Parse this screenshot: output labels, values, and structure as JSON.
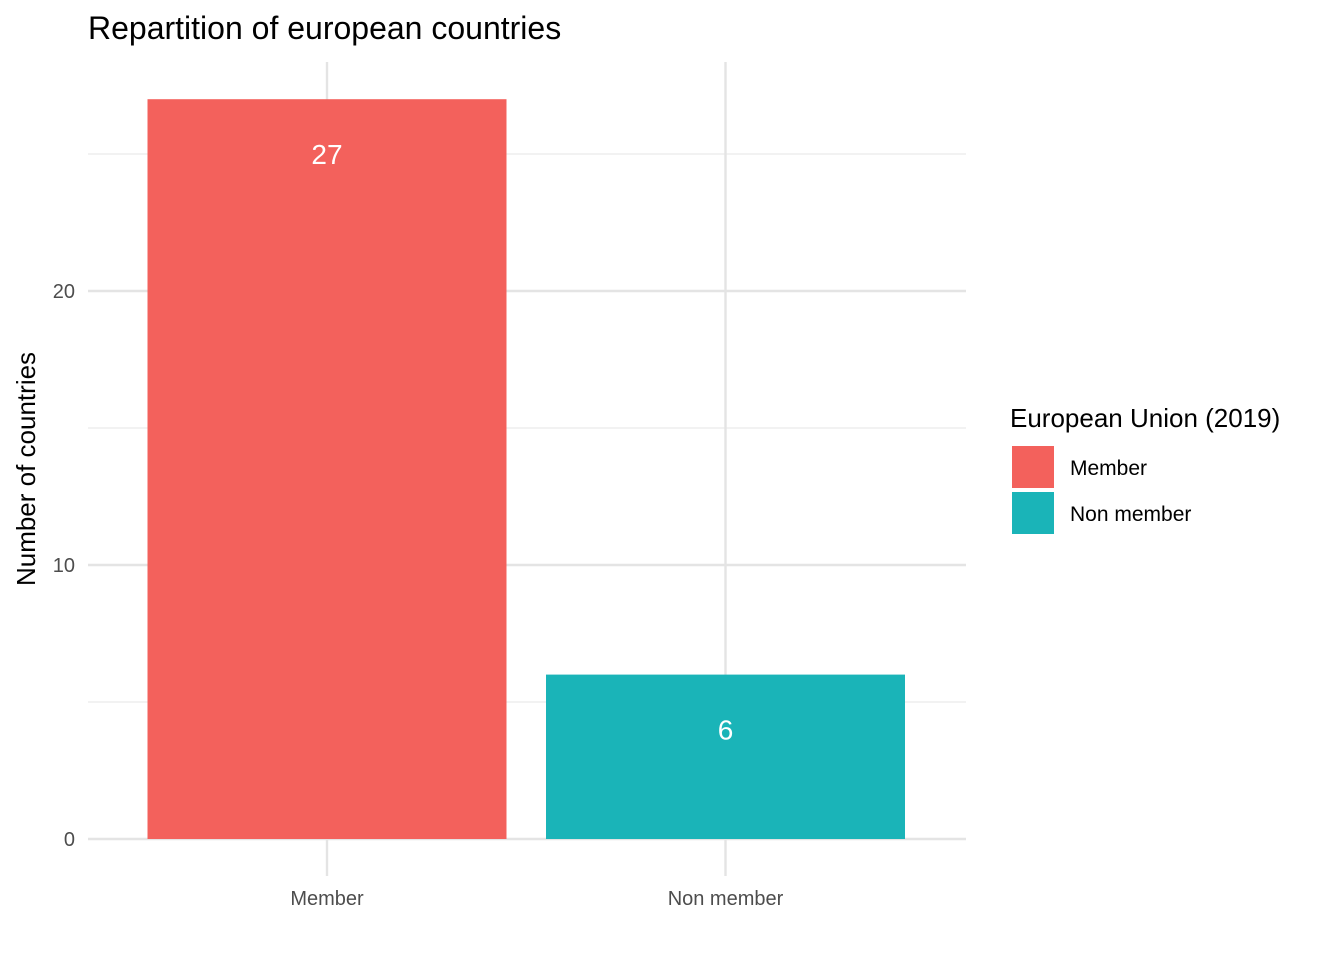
{
  "chart_data": {
    "type": "bar",
    "title": "Repartition of european countries",
    "xlabel": "",
    "ylabel": "Number of countries",
    "categories": [
      "Member",
      "Non member"
    ],
    "values": [
      27,
      6
    ],
    "data_labels": [
      "27",
      "6"
    ],
    "colors": [
      "#F3615C",
      "#1AB4B8"
    ],
    "ylim": [
      0,
      28.35
    ],
    "y_ticks": [
      0,
      10,
      20
    ],
    "y_tick_labels": [
      "0",
      "10",
      "20"
    ],
    "grid": true,
    "legend": {
      "title": "European Union (2019)",
      "placement": "right",
      "entries": [
        {
          "label": "Member",
          "color": "#F3615C"
        },
        {
          "label": "Non member",
          "color": "#1AB4B8"
        }
      ]
    }
  }
}
